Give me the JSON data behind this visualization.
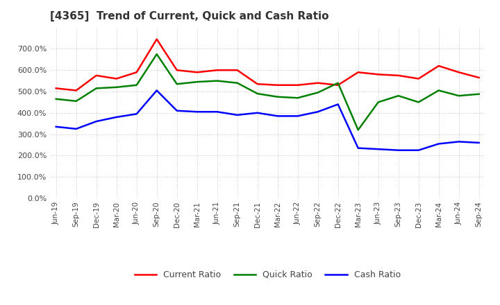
{
  "title": "[4365]  Trend of Current, Quick and Cash Ratio",
  "x_labels": [
    "Jun-19",
    "Sep-19",
    "Dec-19",
    "Mar-20",
    "Jun-20",
    "Sep-20",
    "Dec-20",
    "Mar-21",
    "Jun-21",
    "Sep-21",
    "Dec-21",
    "Mar-22",
    "Jun-22",
    "Sep-22",
    "Dec-22",
    "Mar-23",
    "Jun-23",
    "Sep-23",
    "Dec-23",
    "Mar-24",
    "Jun-24",
    "Sep-24"
  ],
  "current_ratio": [
    515,
    505,
    575,
    560,
    590,
    745,
    600,
    590,
    600,
    600,
    535,
    530,
    530,
    540,
    530,
    590,
    580,
    575,
    560,
    620,
    590,
    565
  ],
  "quick_ratio": [
    465,
    455,
    515,
    520,
    530,
    675,
    535,
    545,
    550,
    540,
    490,
    475,
    470,
    495,
    540,
    320,
    450,
    480,
    450,
    505,
    480,
    488
  ],
  "cash_ratio": [
    335,
    325,
    360,
    380,
    395,
    505,
    410,
    405,
    405,
    390,
    400,
    385,
    385,
    405,
    440,
    235,
    230,
    225,
    225,
    255,
    265,
    260
  ],
  "current_color": "#ff0000",
  "quick_color": "#008000",
  "cash_color": "#0000ff",
  "ylim": [
    0,
    800
  ],
  "yticks": [
    0,
    100,
    200,
    300,
    400,
    500,
    600,
    700
  ],
  "background_color": "#ffffff",
  "grid_color": "#bbbbbb"
}
